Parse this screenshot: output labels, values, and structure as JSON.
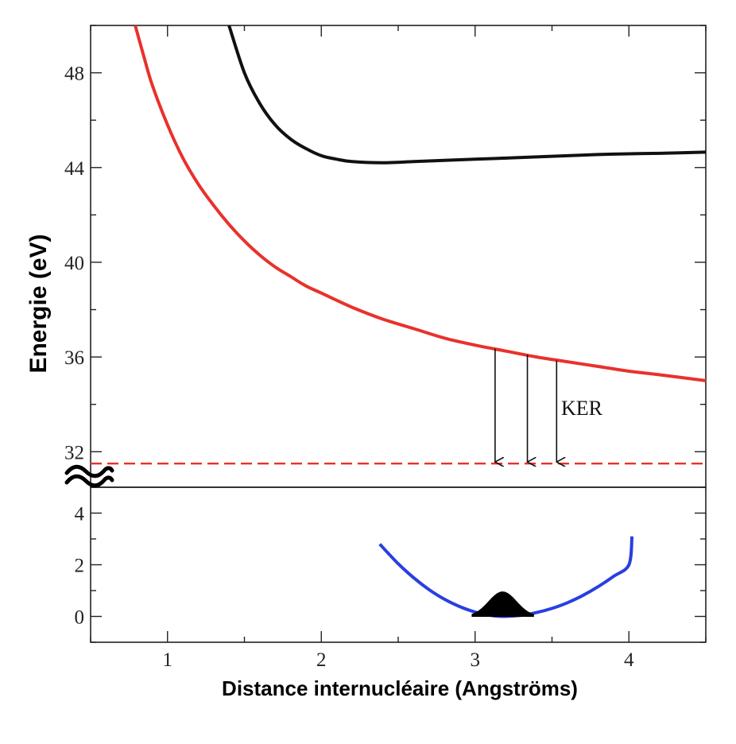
{
  "chart_data": {
    "type": "line",
    "xlabel": "Distance internucléaire (Angströms)",
    "ylabel": "Energie (eV)",
    "xlim": [
      0.5,
      4.5
    ],
    "x_ticks": [
      1,
      2,
      3,
      4
    ],
    "grid": false,
    "legend": "none",
    "annotation": "KER",
    "upper_panel": {
      "ylim": [
        30.5,
        50
      ],
      "y_ticks": [
        32,
        36,
        40,
        44,
        48
      ],
      "series": [
        {
          "color": "#e8322b",
          "style": "solid",
          "points": [
            [
              0.79,
              50.0
            ],
            [
              0.85,
              48.6
            ],
            [
              0.9,
              47.5
            ],
            [
              1.0,
              45.8
            ],
            [
              1.1,
              44.4
            ],
            [
              1.2,
              43.3
            ],
            [
              1.3,
              42.4
            ],
            [
              1.4,
              41.6
            ],
            [
              1.5,
              40.9
            ],
            [
              1.6,
              40.3
            ],
            [
              1.7,
              39.8
            ],
            [
              1.8,
              39.4
            ],
            [
              1.9,
              39.0
            ],
            [
              2.0,
              38.7
            ],
            [
              2.2,
              38.1
            ],
            [
              2.4,
              37.6
            ],
            [
              2.6,
              37.2
            ],
            [
              2.8,
              36.8
            ],
            [
              3.0,
              36.5
            ],
            [
              3.2,
              36.25
            ],
            [
              3.4,
              36.0
            ],
            [
              3.6,
              35.8
            ],
            [
              3.8,
              35.6
            ],
            [
              4.0,
              35.4
            ],
            [
              4.2,
              35.25
            ],
            [
              4.5,
              35.0
            ]
          ]
        },
        {
          "color": "#111111",
          "style": "solid",
          "points": [
            [
              1.4,
              50.0
            ],
            [
              1.5,
              48.0
            ],
            [
              1.6,
              46.7
            ],
            [
              1.7,
              45.8
            ],
            [
              1.8,
              45.2
            ],
            [
              1.9,
              44.8
            ],
            [
              2.0,
              44.5
            ],
            [
              2.1,
              44.35
            ],
            [
              2.2,
              44.25
            ],
            [
              2.4,
              44.2
            ],
            [
              2.6,
              44.25
            ],
            [
              2.8,
              44.3
            ],
            [
              3.0,
              44.35
            ],
            [
              3.2,
              44.4
            ],
            [
              3.4,
              44.45
            ],
            [
              3.6,
              44.5
            ],
            [
              3.8,
              44.55
            ],
            [
              4.0,
              44.58
            ],
            [
              4.2,
              44.6
            ],
            [
              4.5,
              44.65
            ]
          ]
        },
        {
          "color": "#e8322b",
          "style": "dashed",
          "points": [
            [
              0.5,
              31.5
            ],
            [
              4.5,
              31.5
            ]
          ]
        }
      ],
      "arrows": [
        {
          "x": 3.13,
          "y_from": 36.35,
          "y_to": 31.5
        },
        {
          "x": 3.34,
          "y_from": 36.1,
          "y_to": 31.5
        },
        {
          "x": 3.53,
          "y_from": 35.85,
          "y_to": 31.5
        }
      ]
    },
    "lower_panel": {
      "ylim": [
        -1.0,
        5.0
      ],
      "y_ticks": [
        0,
        2,
        4
      ],
      "series": [
        {
          "color": "#2a3fe0",
          "style": "solid",
          "points": [
            [
              2.38,
              2.8
            ],
            [
              2.5,
              2.04
            ],
            [
              2.6,
              1.5
            ],
            [
              2.7,
              1.04
            ],
            [
              2.8,
              0.67
            ],
            [
              2.9,
              0.38
            ],
            [
              3.0,
              0.17
            ],
            [
              3.1,
              0.04
            ],
            [
              3.18,
              0.0
            ],
            [
              3.3,
              0.04
            ],
            [
              3.4,
              0.15
            ],
            [
              3.5,
              0.31
            ],
            [
              3.6,
              0.53
            ],
            [
              3.7,
              0.81
            ],
            [
              3.8,
              1.15
            ],
            [
              3.9,
              1.55
            ],
            [
              4.0,
              2.0
            ],
            [
              4.02,
              3.1
            ]
          ]
        }
      ],
      "wavepacket": {
        "color": "#000000",
        "center": 3.18,
        "width": 0.09,
        "peak": 0.95,
        "x_range": [
          2.98,
          3.38
        ]
      }
    }
  }
}
